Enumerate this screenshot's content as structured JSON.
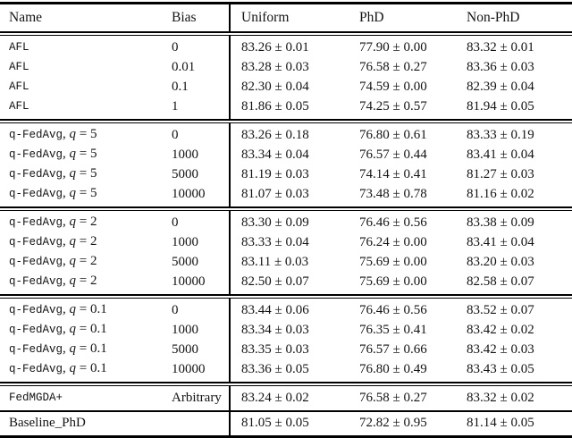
{
  "table": {
    "headers": {
      "name": "Name",
      "bias": "Bias",
      "uniform": "Uniform",
      "phd": "PhD",
      "nonphd": "Non-PhD"
    },
    "groups": [
      {
        "rows": [
          {
            "mono": "AFL",
            "bias": "0",
            "uniform": "83.26 ± 0.01",
            "phd": "77.90 ± 0.00",
            "nonphd": "83.32 ± 0.01"
          },
          {
            "mono": "AFL",
            "bias": "0.01",
            "uniform": "83.28 ± 0.03",
            "phd": "76.58 ± 0.27",
            "nonphd": "83.36 ± 0.03"
          },
          {
            "mono": "AFL",
            "bias": "0.1",
            "uniform": "82.30 ± 0.04",
            "phd": "74.59 ± 0.00",
            "nonphd": "82.39 ± 0.04"
          },
          {
            "mono": "AFL",
            "bias": "1",
            "uniform": "81.86 ± 0.05",
            "phd": "74.25 ± 0.57",
            "nonphd": "81.94 ± 0.05"
          }
        ]
      },
      {
        "rows": [
          {
            "mono": "q-FedAvg",
            "pre": ", ",
            "var": "q",
            "eq": " = 5",
            "bias": "0",
            "uniform": "83.26 ± 0.18",
            "phd": "76.80 ± 0.61",
            "nonphd": "83.33 ± 0.19"
          },
          {
            "mono": "q-FedAvg",
            "pre": ", ",
            "var": "q",
            "eq": " = 5",
            "bias": "1000",
            "uniform": "83.34 ± 0.04",
            "phd": "76.57 ± 0.44",
            "nonphd": "83.41 ± 0.04"
          },
          {
            "mono": "q-FedAvg",
            "pre": ", ",
            "var": "q",
            "eq": " = 5",
            "bias": "5000",
            "uniform": "81.19 ± 0.03",
            "phd": "74.14 ± 0.41",
            "nonphd": "81.27 ± 0.03"
          },
          {
            "mono": "q-FedAvg",
            "pre": ", ",
            "var": "q",
            "eq": " = 5",
            "bias": "10000",
            "uniform": "81.07 ± 0.03",
            "phd": "73.48 ± 0.78",
            "nonphd": "81.16 ± 0.02"
          }
        ]
      },
      {
        "rows": [
          {
            "mono": "q-FedAvg",
            "pre": ", ",
            "var": "q",
            "eq": " = 2",
            "bias": "0",
            "uniform": "83.30 ± 0.09",
            "phd": "76.46 ± 0.56",
            "nonphd": "83.38 ± 0.09"
          },
          {
            "mono": "q-FedAvg",
            "pre": ", ",
            "var": "q",
            "eq": " = 2",
            "bias": "1000",
            "uniform": "83.33 ± 0.04",
            "phd": "76.24 ± 0.00",
            "nonphd": "83.41 ± 0.04"
          },
          {
            "mono": "q-FedAvg",
            "pre": ", ",
            "var": "q",
            "eq": " = 2",
            "bias": "5000",
            "uniform": "83.11 ± 0.03",
            "phd": "75.69 ± 0.00",
            "nonphd": "83.20 ± 0.03"
          },
          {
            "mono": "q-FedAvg",
            "pre": ", ",
            "var": "q",
            "eq": " = 2",
            "bias": "10000",
            "uniform": "82.50 ± 0.07",
            "phd": "75.69 ± 0.00",
            "nonphd": "82.58 ± 0.07"
          }
        ]
      },
      {
        "rows": [
          {
            "mono": "q-FedAvg",
            "pre": ", ",
            "var": "q",
            "eq": " = 0.1",
            "bias": "0",
            "uniform": "83.44 ± 0.06",
            "phd": "76.46 ± 0.56",
            "nonphd": "83.52 ± 0.07"
          },
          {
            "mono": "q-FedAvg",
            "pre": ", ",
            "var": "q",
            "eq": " = 0.1",
            "bias": "1000",
            "uniform": "83.34 ± 0.03",
            "phd": "76.35 ± 0.41",
            "nonphd": "83.42 ± 0.02"
          },
          {
            "mono": "q-FedAvg",
            "pre": ", ",
            "var": "q",
            "eq": " = 0.1",
            "bias": "5000",
            "uniform": "83.35 ± 0.03",
            "phd": "76.57 ± 0.66",
            "nonphd": "83.42 ± 0.03"
          },
          {
            "mono": "q-FedAvg",
            "pre": ", ",
            "var": "q",
            "eq": " = 0.1",
            "bias": "10000",
            "uniform": "83.36 ± 0.05",
            "phd": "76.80 ± 0.49",
            "nonphd": "83.43 ± 0.05"
          }
        ]
      },
      {
        "rows": [
          {
            "mono": "FedMGDA+",
            "bias": "Arbitrary",
            "uniform": "83.24 ± 0.02",
            "phd": "76.58 ± 0.27",
            "nonphd": "83.32 ± 0.02"
          }
        ]
      },
      {
        "rows": [
          {
            "serif": "Baseline_PhD",
            "bias": "",
            "uniform": "81.05 ± 0.05",
            "phd": "72.82 ± 0.95",
            "nonphd": "81.14 ± 0.05"
          }
        ]
      }
    ]
  }
}
